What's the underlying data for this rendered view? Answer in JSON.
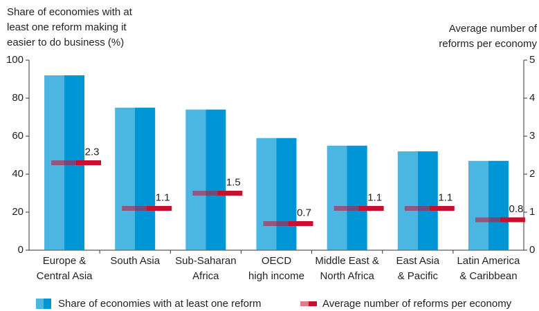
{
  "chart_data": {
    "type": "bar",
    "y_title": [
      "Share of economies with at",
      "least one reform making it",
      "easier to do business (%)"
    ],
    "y2_title": [
      "Average number of",
      "reforms per economy"
    ],
    "categories": [
      [
        "Europe &",
        "Central Asia"
      ],
      [
        "South Asia"
      ],
      [
        "Sub-Saharan",
        "Africa"
      ],
      [
        "OECD",
        "high income"
      ],
      [
        "Middle East &",
        "North Africa"
      ],
      [
        "East Asia",
        "& Pacific"
      ],
      [
        "Latin America",
        "& Caribbean"
      ]
    ],
    "series": [
      {
        "name": "Share of economies with at least one reform",
        "type": "bar",
        "color": "#0096d6",
        "values": [
          92,
          75,
          74,
          59,
          55,
          52,
          47
        ]
      },
      {
        "name": "Average number of reforms per economy",
        "type": "marker",
        "axis": "y2",
        "color": "#c8102e",
        "values": [
          2.3,
          1.1,
          1.5,
          0.7,
          1.1,
          1.1,
          0.8
        ]
      }
    ],
    "ylim": [
      0,
      100
    ],
    "yticks": [
      0,
      20,
      40,
      60,
      80,
      100
    ],
    "y2lim": [
      0,
      5
    ],
    "y2ticks": [
      0,
      1,
      2,
      3,
      4,
      5
    ],
    "legend": "bottom"
  }
}
